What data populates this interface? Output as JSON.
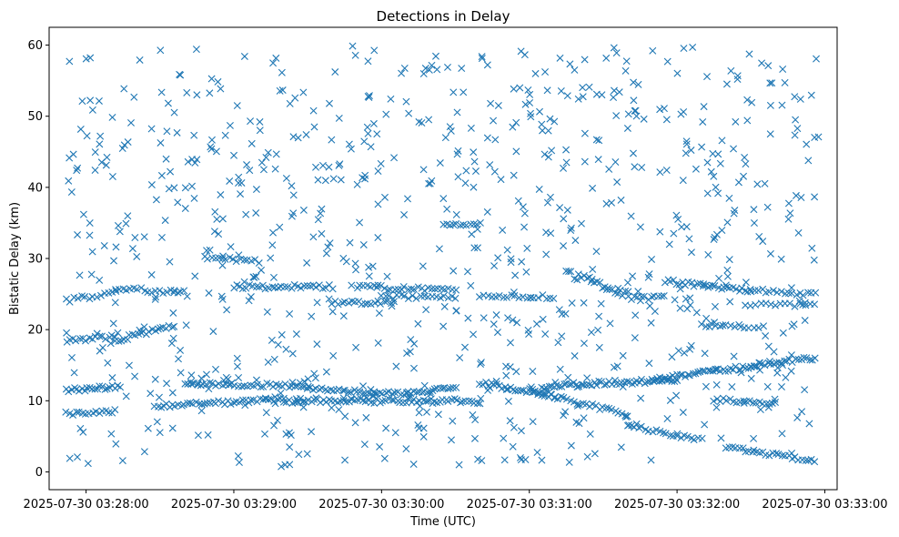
{
  "chart_data": {
    "type": "scatter",
    "title": "Detections in Delay",
    "xlabel": "Time (UTC)",
    "ylabel": "Bistatic Delay (km)",
    "marker": "x",
    "color": "#1f77b4",
    "grid": false,
    "legend": "none",
    "x_axis": {
      "kind": "time",
      "range": [
        "2025-07-30 03:27:45",
        "2025-07-30 03:33:05"
      ],
      "ticks": [
        "2025-07-30 03:28:00",
        "2025-07-30 03:29:00",
        "2025-07-30 03:30:00",
        "2025-07-30 03:31:00",
        "2025-07-30 03:32:00",
        "2025-07-30 03:33:00"
      ]
    },
    "y_axis": {
      "range": [
        -2.5,
        62.5
      ],
      "ticks": [
        0,
        10,
        20,
        30,
        40,
        50,
        60
      ]
    },
    "series": [
      {
        "style": "track",
        "segments": [
          {
            "start": [
              "2025-07-30 03:27:52",
              11.5
            ],
            "end": [
              "2025-07-30 03:28:14",
              12.0
            ],
            "count": 22,
            "jitter": 0.3
          },
          {
            "start": [
              "2025-07-30 03:28:28",
              9.2
            ],
            "end": [
              "2025-07-30 03:29:20",
              10.2
            ],
            "count": 45,
            "jitter": 0.3
          },
          {
            "start": [
              "2025-07-30 03:28:40",
              12.5
            ],
            "end": [
              "2025-07-30 03:29:30",
              12.0
            ],
            "count": 40,
            "jitter": 0.3
          },
          {
            "start": [
              "2025-07-30 03:29:20",
              10.0
            ],
            "end": [
              "2025-07-30 03:30:40",
              10.0
            ],
            "count": 70,
            "jitter": 0.35
          },
          {
            "start": [
              "2025-07-30 03:29:30",
              11.8
            ],
            "end": [
              "2025-07-30 03:30:10",
              11.0
            ],
            "count": 35,
            "jitter": 0.3
          },
          {
            "start": [
              "2025-07-30 03:30:10",
              11.0
            ],
            "end": [
              "2025-07-30 03:30:30",
              12.0
            ],
            "count": 20,
            "jitter": 0.3
          },
          {
            "start": [
              "2025-07-30 03:30:40",
              12.5
            ],
            "end": [
              "2025-07-30 03:31:10",
              10.8
            ],
            "count": 28,
            "jitter": 0.3
          },
          {
            "start": [
              "2025-07-30 03:31:05",
              12.0
            ],
            "end": [
              "2025-07-30 03:32:00",
              13.0
            ],
            "count": 55,
            "jitter": 0.35
          },
          {
            "start": [
              "2025-07-30 03:31:50",
              13.0
            ],
            "end": [
              "2025-07-30 03:32:30",
              14.8
            ],
            "count": 40,
            "jitter": 0.3
          },
          {
            "start": [
              "2025-07-30 03:32:30",
              15.0
            ],
            "end": [
              "2025-07-30 03:32:56",
              16.0
            ],
            "count": 24,
            "jitter": 0.25
          },
          {
            "start": [
              "2025-07-30 03:31:00",
              11.5
            ],
            "end": [
              "2025-07-30 03:31:40",
              8.0
            ],
            "count": 32,
            "jitter": 0.3
          },
          {
            "start": [
              "2025-07-30 03:31:40",
              6.5
            ],
            "end": [
              "2025-07-30 03:32:10",
              4.5
            ],
            "count": 22,
            "jitter": 0.3
          },
          {
            "start": [
              "2025-07-30 03:32:20",
              3.5
            ],
            "end": [
              "2025-07-30 03:32:56",
              1.5
            ],
            "count": 28,
            "jitter": 0.25
          },
          {
            "start": [
              "2025-07-30 03:32:15",
              10.2
            ],
            "end": [
              "2025-07-30 03:32:40",
              9.6
            ],
            "count": 20,
            "jitter": 0.25
          },
          {
            "start": [
              "2025-07-30 03:27:52",
              8.2
            ],
            "end": [
              "2025-07-30 03:28:12",
              8.5
            ],
            "count": 16,
            "jitter": 0.25
          },
          {
            "start": [
              "2025-07-30 03:27:52",
              18.5
            ],
            "end": [
              "2025-07-30 03:28:12",
              19.0
            ],
            "count": 16,
            "jitter": 0.3
          },
          {
            "start": [
              "2025-07-30 03:28:12",
              18.5
            ],
            "end": [
              "2025-07-30 03:28:36",
              20.5
            ],
            "count": 22,
            "jitter": 0.3
          },
          {
            "start": [
              "2025-07-30 03:27:52",
              24.0
            ],
            "end": [
              "2025-07-30 03:28:12",
              25.5
            ],
            "count": 14,
            "jitter": 0.4
          },
          {
            "start": [
              "2025-07-30 03:28:12",
              25.8
            ],
            "end": [
              "2025-07-30 03:28:40",
              25.2
            ],
            "count": 20,
            "jitter": 0.3
          },
          {
            "start": [
              "2025-07-30 03:28:48",
              30.2
            ],
            "end": [
              "2025-07-30 03:29:10",
              29.5
            ],
            "count": 16,
            "jitter": 0.3
          },
          {
            "start": [
              "2025-07-30 03:29:00",
              26.0
            ],
            "end": [
              "2025-07-30 03:29:40",
              26.0
            ],
            "count": 32,
            "jitter": 0.3
          },
          {
            "start": [
              "2025-07-30 03:29:40",
              23.8
            ],
            "end": [
              "2025-07-30 03:30:05",
              23.8
            ],
            "count": 20,
            "jitter": 0.3
          },
          {
            "start": [
              "2025-07-30 03:29:50",
              26.0
            ],
            "end": [
              "2025-07-30 03:30:30",
              25.5
            ],
            "count": 30,
            "jitter": 0.3
          },
          {
            "start": [
              "2025-07-30 03:30:00",
              24.6
            ],
            "end": [
              "2025-07-30 03:30:30",
              24.6
            ],
            "count": 20,
            "jitter": 0.3
          },
          {
            "start": [
              "2025-07-30 03:30:25",
              34.6
            ],
            "end": [
              "2025-07-30 03:30:40",
              35.0
            ],
            "count": 12,
            "jitter": 0.2
          },
          {
            "start": [
              "2025-07-30 03:30:40",
              24.6
            ],
            "end": [
              "2025-07-30 03:31:10",
              24.6
            ],
            "count": 20,
            "jitter": 0.3
          },
          {
            "start": [
              "2025-07-30 03:31:15",
              28.0
            ],
            "end": [
              "2025-07-30 03:31:40",
              25.0
            ],
            "count": 25,
            "jitter": 0.5
          },
          {
            "start": [
              "2025-07-30 03:31:40",
              24.5
            ],
            "end": [
              "2025-07-30 03:31:55",
              24.5
            ],
            "count": 12,
            "jitter": 0.3
          },
          {
            "start": [
              "2025-07-30 03:31:55",
              26.8
            ],
            "end": [
              "2025-07-30 03:32:30",
              25.5
            ],
            "count": 30,
            "jitter": 0.3
          },
          {
            "start": [
              "2025-07-30 03:32:30",
              25.5
            ],
            "end": [
              "2025-07-30 03:32:56",
              25.0
            ],
            "count": 18,
            "jitter": 0.3
          },
          {
            "start": [
              "2025-07-30 03:32:30",
              23.5
            ],
            "end": [
              "2025-07-30 03:32:56",
              23.5
            ],
            "count": 14,
            "jitter": 0.25
          },
          {
            "start": [
              "2025-07-30 03:32:10",
              20.7
            ],
            "end": [
              "2025-07-30 03:32:35",
              20.3
            ],
            "count": 14,
            "jitter": 0.25
          }
        ]
      },
      {
        "style": "clutter",
        "count": 850,
        "x_range": [
          "2025-07-30 03:27:52",
          "2025-07-30 03:32:58"
        ],
        "y_range": [
          0.5,
          60.0
        ],
        "seed": 20250730
      }
    ]
  }
}
